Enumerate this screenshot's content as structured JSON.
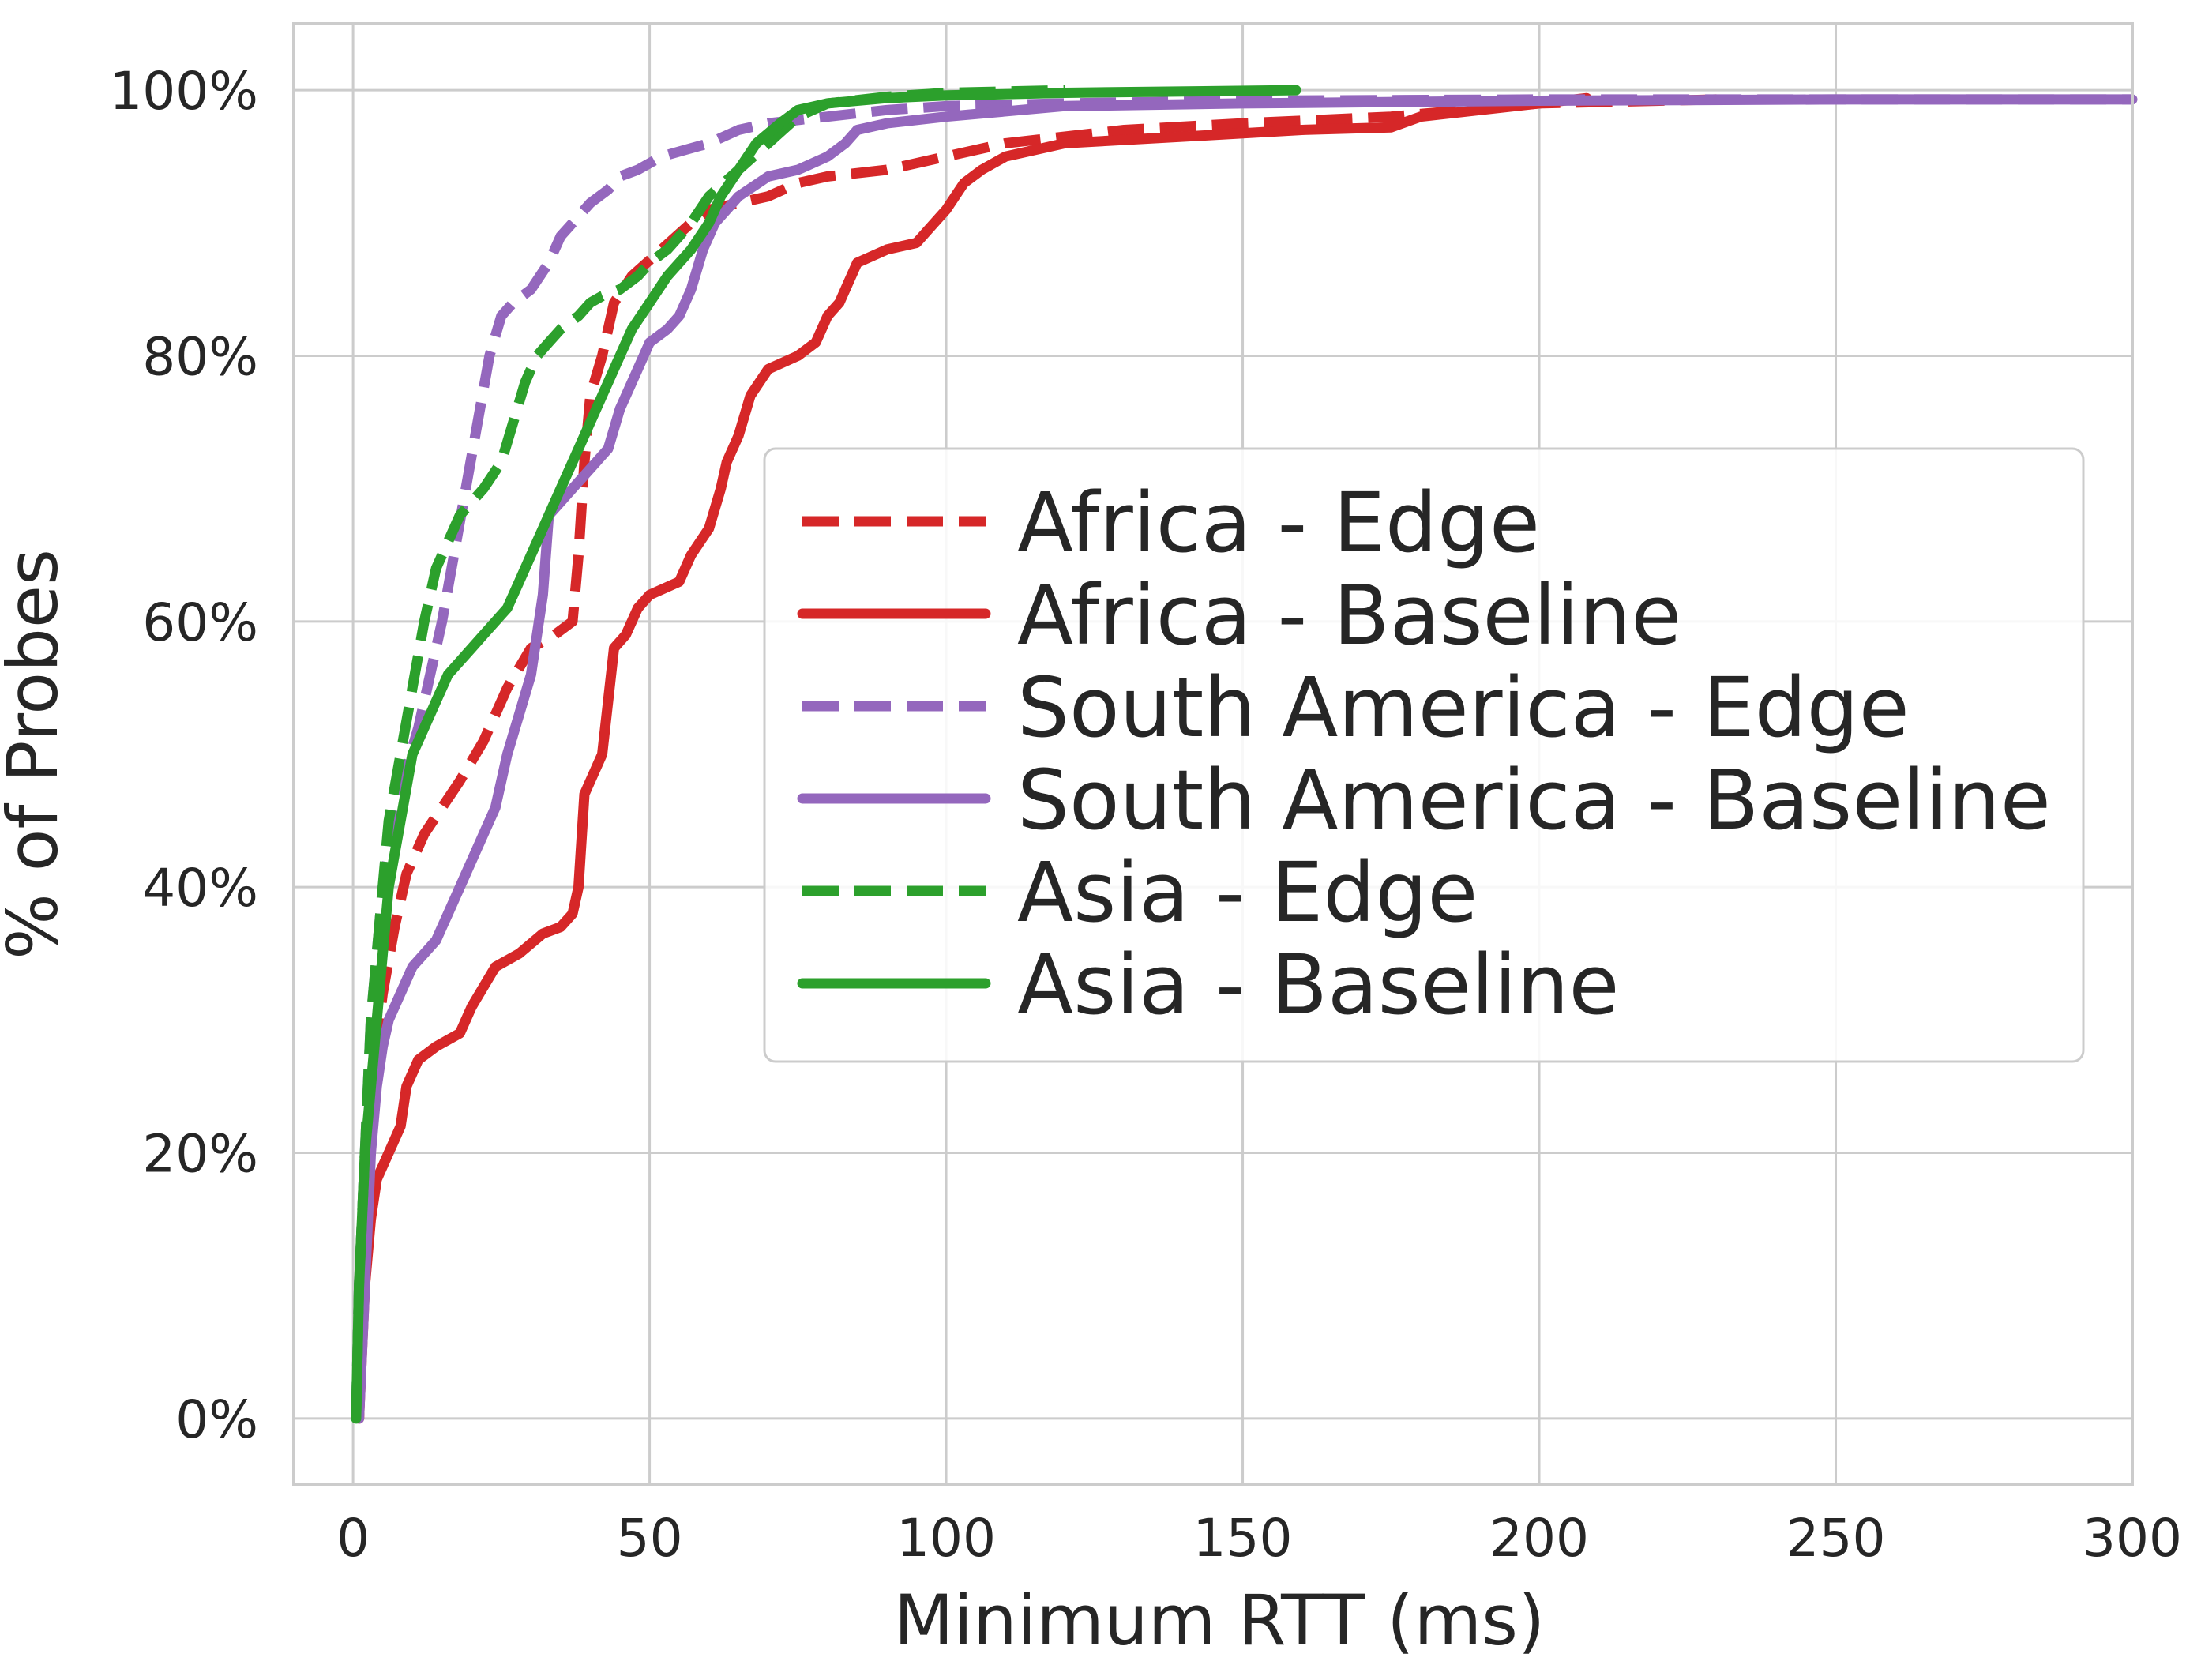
{
  "chart_data": {
    "type": "line",
    "xlabel": "Minimum RTT (ms)",
    "ylabel": "% of Probes",
    "xlim": [
      -10,
      300
    ],
    "ylim": [
      -5,
      105
    ],
    "x_ticks": [
      0,
      50,
      100,
      150,
      200,
      250,
      300
    ],
    "y_ticks": [
      0,
      20,
      40,
      60,
      80,
      100
    ],
    "y_tick_labels": [
      "0%",
      "20%",
      "40%",
      "60%",
      "80%",
      "100%"
    ],
    "grid": true,
    "legend_position": "center-right",
    "series": [
      {
        "name": "Africa - Edge",
        "color": "#d62728",
        "dash": true,
        "x": [
          1,
          2,
          3,
          5,
          7,
          9,
          12,
          15,
          18,
          22,
          26,
          30,
          34,
          37,
          38,
          39,
          40,
          42,
          44,
          47,
          52,
          57,
          60,
          65,
          70,
          75,
          80,
          90,
          100,
          110,
          130,
          150,
          175,
          200,
          230
        ],
        "y": [
          0,
          15,
          25,
          32,
          37,
          41,
          44,
          46,
          48,
          51,
          55,
          58,
          59,
          60,
          65,
          72,
          77,
          80,
          84,
          86,
          88,
          90,
          91,
          91.5,
          92,
          93,
          93.5,
          94,
          95,
          96,
          97,
          97.5,
          98,
          99,
          99.3
        ]
      },
      {
        "name": "Africa - Baseline",
        "color": "#d62728",
        "dash": false,
        "x": [
          1,
          2,
          3,
          4,
          6,
          8,
          9,
          11,
          14,
          16,
          18,
          20,
          24,
          28,
          32,
          35,
          37,
          38,
          39,
          40,
          42,
          44,
          46,
          48,
          50,
          55,
          57,
          60,
          62,
          63,
          65,
          67,
          70,
          75,
          78,
          80,
          82,
          85,
          90,
          95,
          98,
          100,
          103,
          106,
          110,
          120,
          140,
          160,
          175,
          180,
          200,
          208
        ],
        "y": [
          0,
          10,
          15,
          18,
          20,
          22,
          25,
          27,
          28,
          28.5,
          29,
          31,
          34,
          35,
          36.5,
          37,
          38,
          40,
          47,
          48,
          50,
          58,
          59,
          61,
          62,
          63,
          65,
          67,
          70,
          72,
          74,
          77,
          79,
          80,
          81,
          83,
          84,
          87,
          88,
          88.5,
          90,
          91,
          93,
          94,
          95,
          96,
          96.5,
          97,
          97.2,
          98,
          99,
          99.4
        ]
      },
      {
        "name": "South America - Edge",
        "color": "#9467bd",
        "dash": true,
        "x": [
          0.5,
          1,
          2,
          3,
          4,
          5,
          7,
          9,
          11,
          13,
          15,
          17,
          19,
          21,
          23,
          25,
          27,
          30,
          33,
          35,
          37,
          40,
          43,
          45,
          48,
          52,
          56,
          60,
          65,
          70,
          80,
          90,
          100,
          120,
          150,
          200,
          250,
          300
        ],
        "y": [
          0,
          10,
          20,
          30,
          35,
          40,
          45,
          49,
          52,
          56,
          60,
          65,
          70,
          75,
          80,
          83,
          84,
          85,
          87,
          89,
          90,
          91.5,
          92.5,
          93.5,
          94,
          95,
          95.5,
          96,
          97,
          97.5,
          98,
          98.5,
          98.8,
          99,
          99.2,
          99.3,
          99.3,
          99.3
        ]
      },
      {
        "name": "South America - Baseline",
        "color": "#9467bd",
        "dash": false,
        "x": [
          1,
          2,
          3,
          4,
          5,
          6,
          8,
          10,
          12,
          14,
          15,
          16,
          18,
          20,
          22,
          24,
          26,
          28,
          30,
          32,
          33,
          35,
          37,
          39,
          41,
          43,
          45,
          47,
          50,
          53,
          55,
          57,
          59,
          61,
          63,
          65,
          70,
          75,
          80,
          83,
          85,
          90,
          100,
          120,
          150,
          200,
          250,
          300
        ],
        "y": [
          0,
          10,
          20,
          25,
          28,
          30,
          32,
          34,
          35,
          36,
          37,
          38,
          40,
          42,
          44,
          46,
          50,
          53,
          56,
          62,
          68,
          69,
          70,
          71,
          72,
          73,
          76,
          78,
          81,
          82,
          83,
          85,
          88,
          90,
          91,
          92,
          93.5,
          94,
          95,
          96,
          97,
          97.5,
          98,
          98.8,
          99,
          99.2,
          99.3,
          99.3
        ]
      },
      {
        "name": "Asia - Edge",
        "color": "#2ca02c",
        "dash": true,
        "x": [
          0.5,
          1,
          2,
          3,
          4,
          5,
          6,
          8,
          10,
          12,
          14,
          16,
          18,
          20,
          22,
          25,
          27,
          29,
          31,
          33,
          35,
          38,
          40,
          42,
          45,
          48,
          50,
          53,
          57,
          60,
          65,
          70,
          75,
          80,
          90,
          100,
          120
        ],
        "y": [
          0,
          10,
          20,
          30,
          35,
          40,
          45,
          50,
          55,
          60,
          64,
          66,
          68,
          69,
          70,
          72,
          75,
          78,
          80,
          81,
          82,
          83,
          84,
          84.5,
          85,
          86,
          87,
          88,
          90,
          92,
          94,
          96,
          98,
          99,
          99.5,
          99.8,
          100
        ]
      },
      {
        "name": "Asia - Baseline",
        "color": "#2ca02c",
        "dash": false,
        "x": [
          0.5,
          1,
          1.5,
          2,
          3,
          4,
          5,
          6,
          8,
          10,
          12,
          14,
          16,
          18,
          20,
          22,
          24,
          26,
          28,
          30,
          32,
          35,
          38,
          40,
          42,
          45,
          47,
          50,
          53,
          57,
          60,
          62,
          65,
          68,
          72,
          75,
          80,
          90,
          100,
          120,
          159
        ],
        "y": [
          0,
          10,
          15,
          20,
          25,
          30,
          35,
          40,
          45,
          50,
          52,
          54,
          56,
          57,
          58,
          59,
          60,
          61,
          63,
          65,
          67,
          70,
          73,
          75,
          77,
          80,
          82,
          84,
          86,
          88,
          90,
          92,
          94,
          96,
          97.5,
          98.5,
          99,
          99.4,
          99.6,
          99.8,
          100
        ]
      }
    ]
  }
}
